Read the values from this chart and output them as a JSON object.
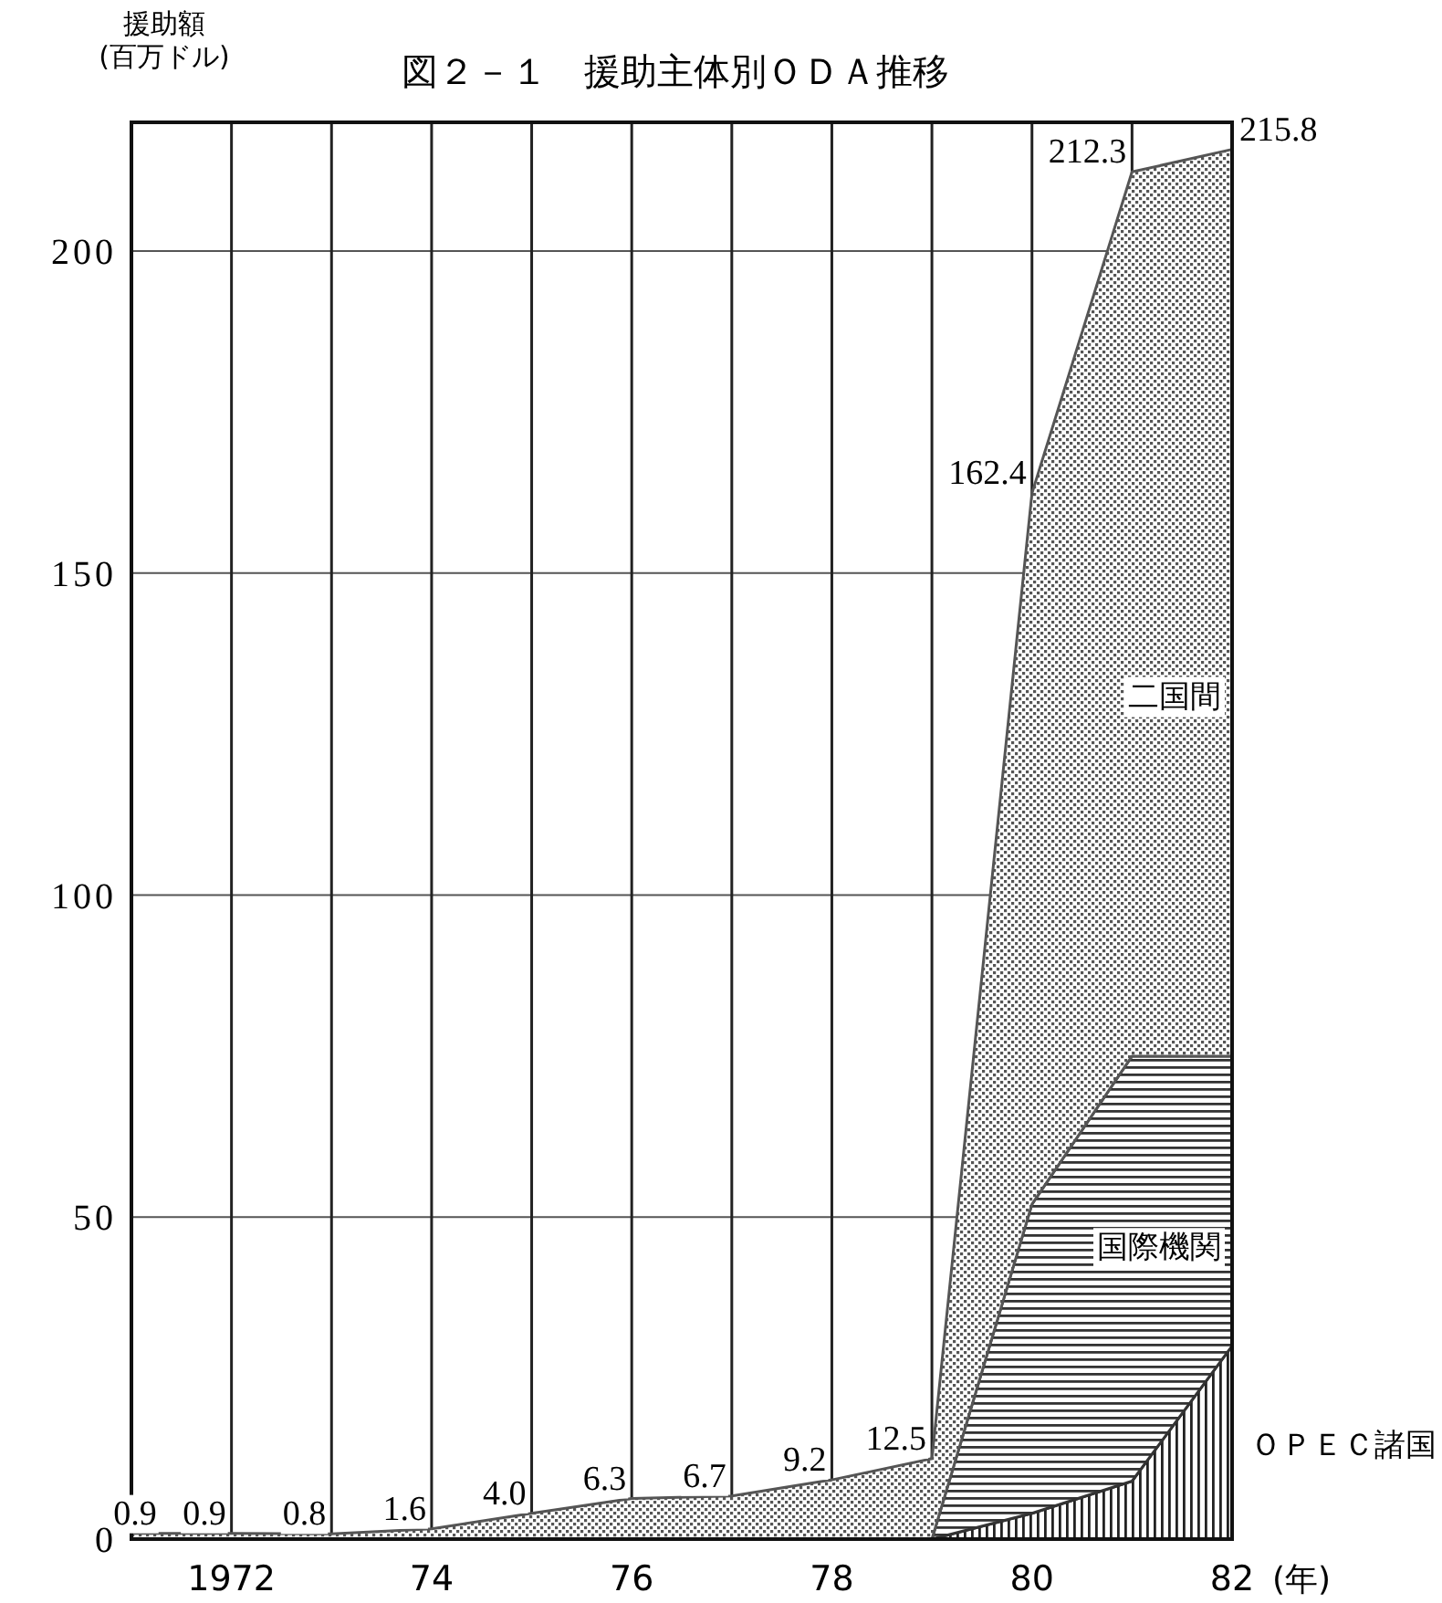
{
  "chart_data": {
    "type": "area",
    "stacked": true,
    "title": "図２－１　援助主体別ＯＤＡ推移",
    "ylabel": "援助額 (百万ドル)",
    "xlabel": "(年)",
    "x": [
      1971,
      1972,
      1973,
      1974,
      1975,
      1976,
      1977,
      1978,
      1979,
      1980,
      1981,
      1982
    ],
    "xlim": [
      1971,
      1982
    ],
    "xticks": [
      {
        "value": 1971,
        "label": null
      },
      {
        "value": 1972,
        "label": "1972"
      },
      {
        "value": 1973,
        "label": null
      },
      {
        "value": 1974,
        "label": "74"
      },
      {
        "value": 1975,
        "label": null
      },
      {
        "value": 1976,
        "label": "76"
      },
      {
        "value": 1977,
        "label": null
      },
      {
        "value": 1978,
        "label": "78"
      },
      {
        "value": 1979,
        "label": null
      },
      {
        "value": 1980,
        "label": "80"
      },
      {
        "value": 1981,
        "label": null
      },
      {
        "value": 1982,
        "label": "82"
      }
    ],
    "ylim": [
      0,
      220
    ],
    "yticks": [
      0,
      50,
      100,
      150,
      200
    ],
    "grid": true,
    "series": [
      {
        "name": "ＯＰＥＣ諸国",
        "color": "#222222",
        "values": [
          null,
          null,
          null,
          null,
          null,
          null,
          null,
          null,
          0,
          4,
          9,
          30
        ]
      },
      {
        "name": "国際機関",
        "color": "#333333",
        "values": [
          null,
          null,
          null,
          null,
          null,
          null,
          null,
          null,
          0,
          48,
          66,
          45
        ]
      },
      {
        "name": "二国間",
        "color": "#555555",
        "values": [
          0.9,
          0.9,
          0.8,
          1.6,
          4.0,
          6.3,
          6.7,
          9.2,
          12.5,
          110.4,
          137.3,
          140.8
        ]
      }
    ],
    "totals": [
      "0.9",
      "0.9",
      "0.8",
      "1.6",
      "4.0",
      "6.3",
      "6.7",
      "9.2",
      "12.5",
      "162.4",
      "212.3",
      "215.8"
    ]
  }
}
